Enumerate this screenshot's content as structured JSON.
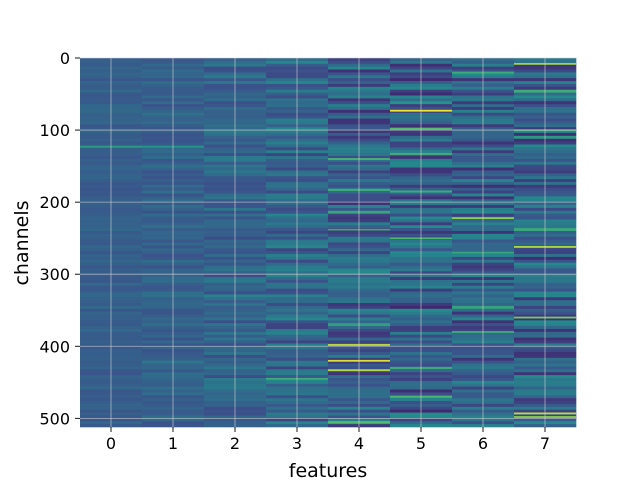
{
  "chart_data": {
    "type": "heatmap",
    "title": "",
    "xlabel": "features",
    "ylabel": "channels",
    "x_categories": [
      "0",
      "1",
      "2",
      "3",
      "4",
      "5",
      "6",
      "7"
    ],
    "y_range": [
      0,
      512
    ],
    "y_ticks": [
      0,
      100,
      200,
      300,
      400,
      500
    ],
    "y_inverted": true,
    "grid": true,
    "colormap": "viridis",
    "colormap_stops": [
      "#440154",
      "#3b528b",
      "#21918c",
      "#5ec962",
      "#fde725"
    ],
    "background_color": "#3b528b",
    "column_base_values": [
      0.3,
      0.31,
      0.32,
      0.33,
      0.3,
      0.3,
      0.3,
      0.3
    ],
    "column_spread": [
      0.04,
      0.06,
      0.09,
      0.13,
      0.16,
      0.18,
      0.16,
      0.17
    ],
    "highlights": [
      {
        "feature": 0,
        "channel": 123,
        "value": 0.55
      },
      {
        "feature": 1,
        "channel": 123,
        "value": 0.52
      },
      {
        "feature": 3,
        "channel": 445,
        "value": 0.62
      },
      {
        "feature": 4,
        "channel": 140,
        "value": 0.66
      },
      {
        "feature": 4,
        "channel": 183,
        "value": 0.64
      },
      {
        "feature": 4,
        "channel": 238,
        "value": 0.62
      },
      {
        "feature": 4,
        "channel": 398,
        "value": 0.9
      },
      {
        "feature": 4,
        "channel": 420,
        "value": 0.95
      },
      {
        "feature": 4,
        "channel": 433,
        "value": 0.88
      },
      {
        "feature": 4,
        "channel": 505,
        "value": 0.7
      },
      {
        "feature": 5,
        "channel": 73,
        "value": 0.98
      },
      {
        "feature": 5,
        "channel": 98,
        "value": 0.7
      },
      {
        "feature": 5,
        "channel": 133,
        "value": 0.65
      },
      {
        "feature": 5,
        "channel": 185,
        "value": 0.62
      },
      {
        "feature": 5,
        "channel": 250,
        "value": 0.68
      },
      {
        "feature": 5,
        "channel": 430,
        "value": 0.64
      },
      {
        "feature": 5,
        "channel": 470,
        "value": 0.66
      },
      {
        "feature": 6,
        "channel": 20,
        "value": 0.62
      },
      {
        "feature": 6,
        "channel": 222,
        "value": 0.82
      },
      {
        "feature": 6,
        "channel": 270,
        "value": 0.6
      },
      {
        "feature": 6,
        "channel": 380,
        "value": 0.62
      },
      {
        "feature": 7,
        "channel": 8,
        "value": 0.85
      },
      {
        "feature": 7,
        "channel": 100,
        "value": 0.62
      },
      {
        "feature": 7,
        "channel": 262,
        "value": 0.88
      },
      {
        "feature": 7,
        "channel": 360,
        "value": 0.78
      },
      {
        "feature": 7,
        "channel": 493,
        "value": 0.9
      },
      {
        "feature": 7,
        "channel": 498,
        "value": 0.82
      }
    ]
  }
}
